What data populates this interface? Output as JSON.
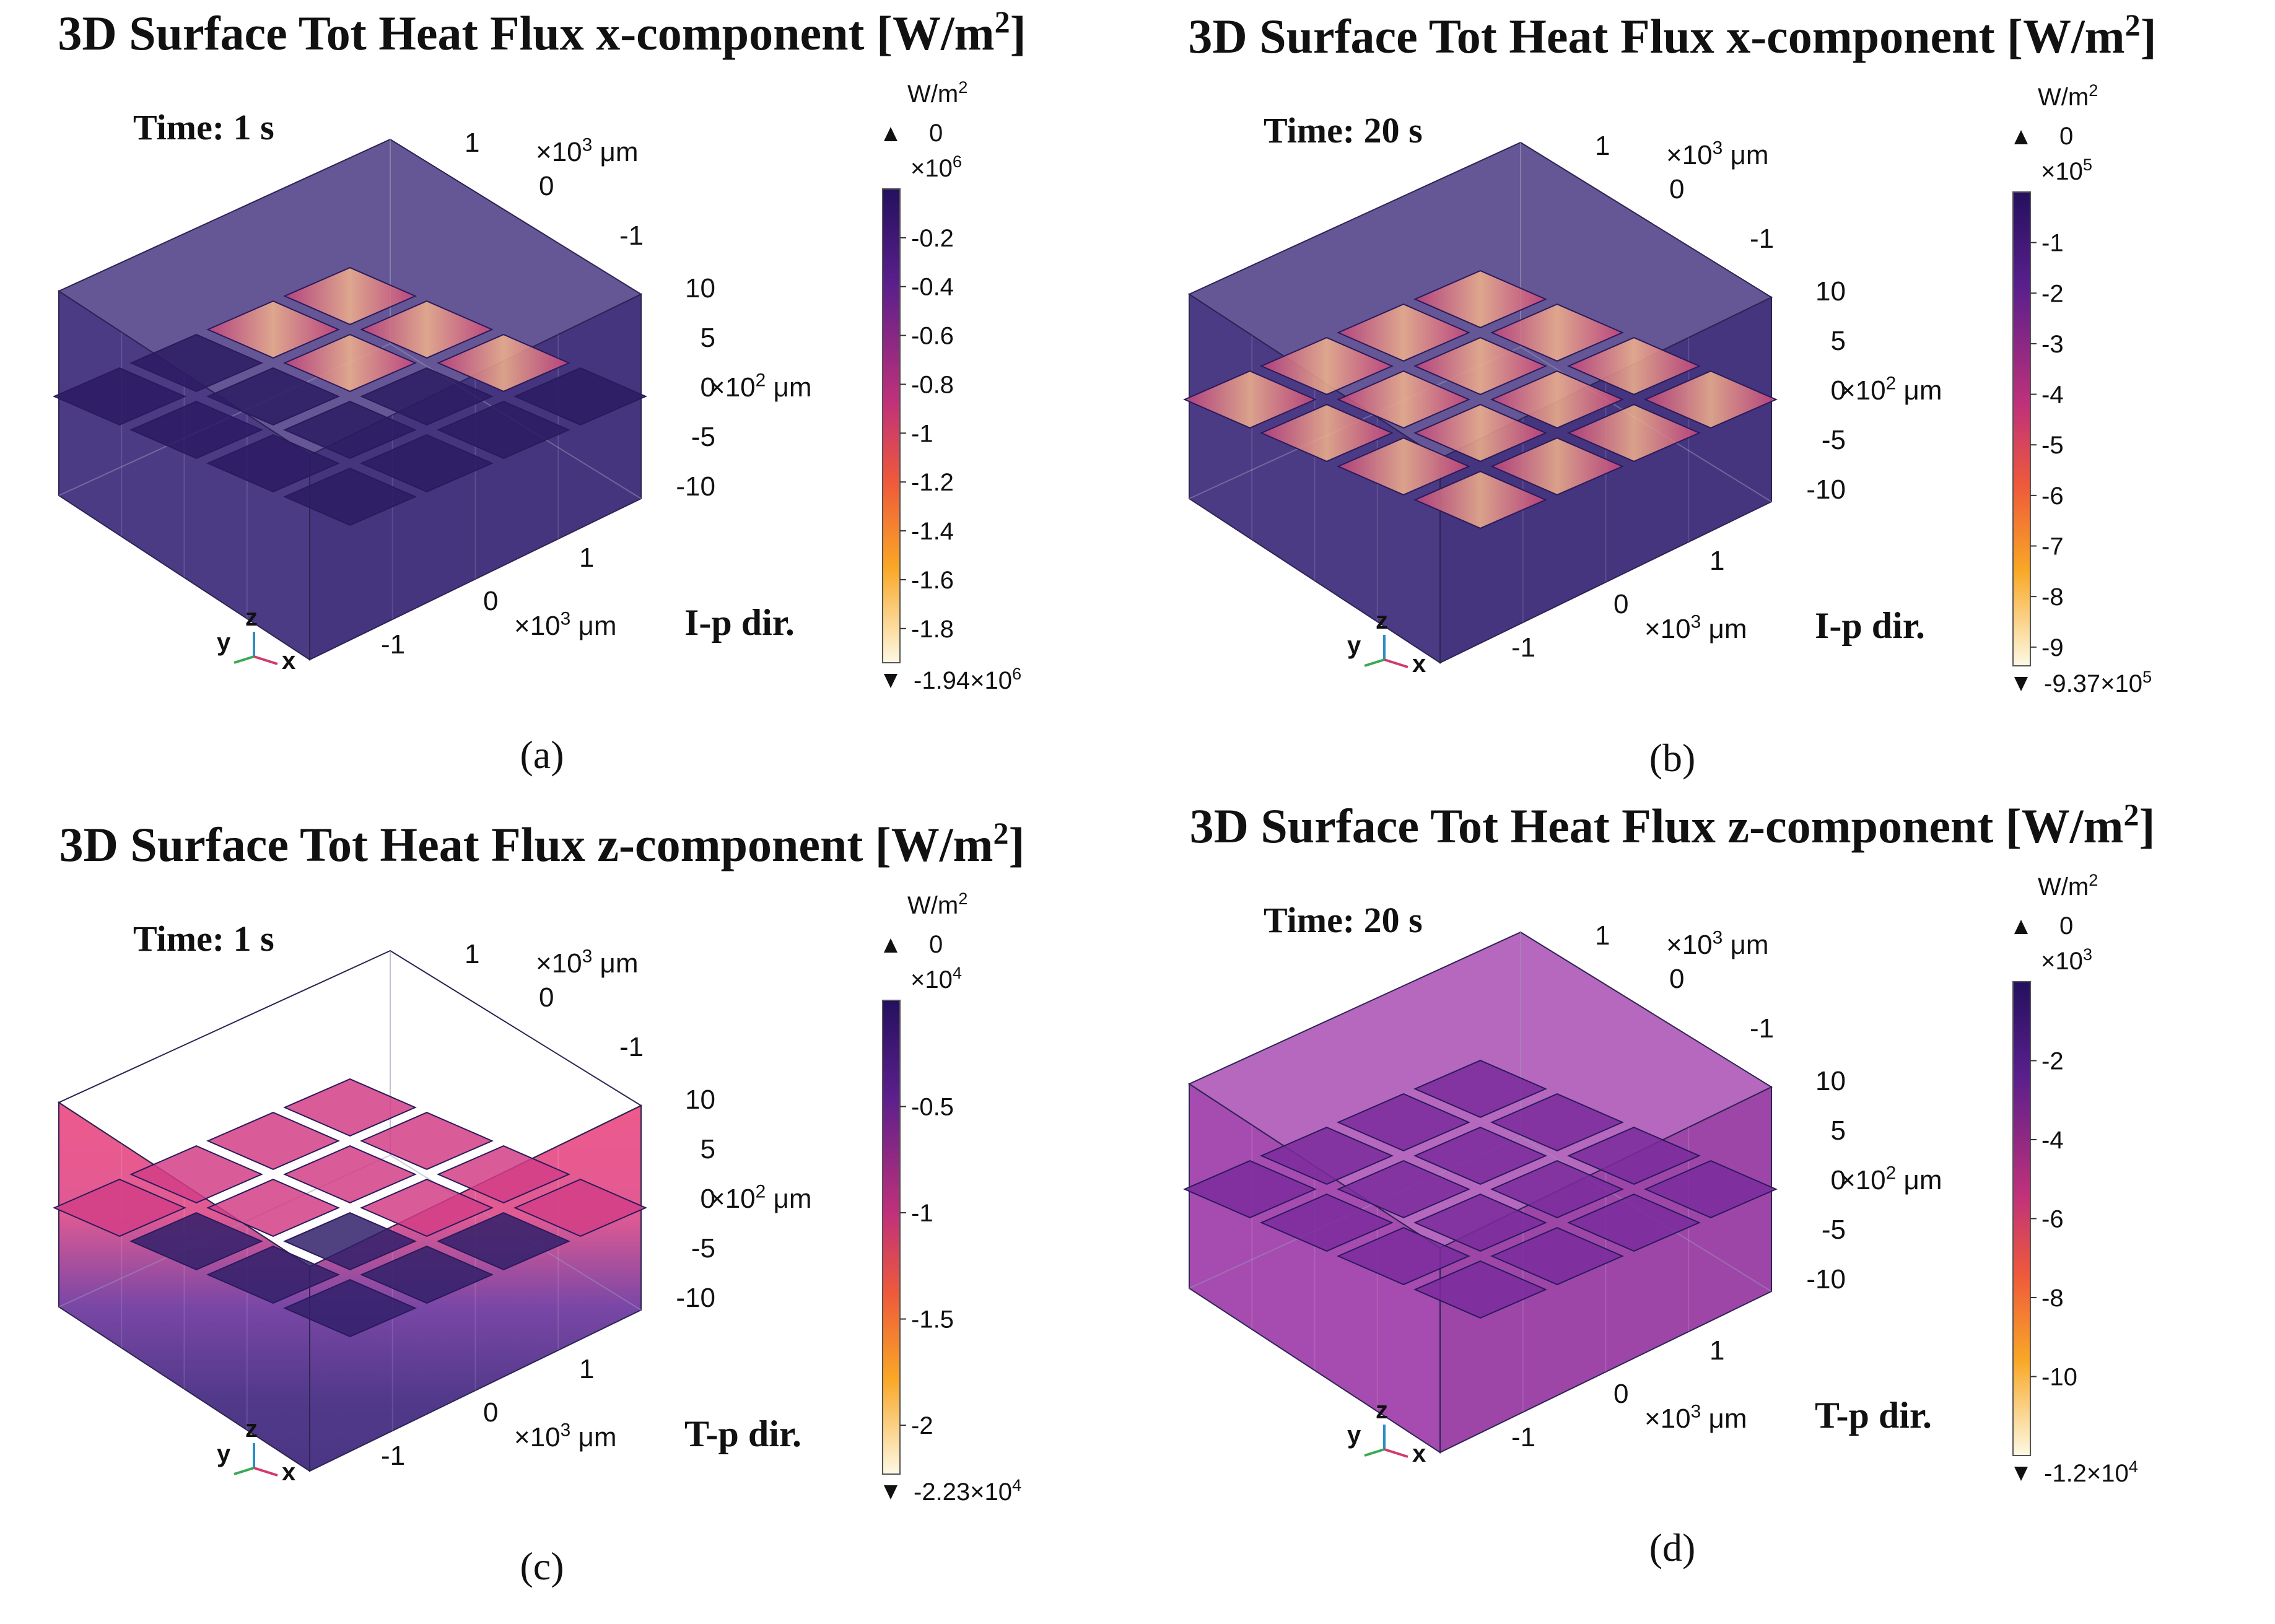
{
  "panels": [
    {
      "title_main": "3D Surface Tot Heat Flux x-component [W/m",
      "title_sup": "2",
      "title_end": "]",
      "time": "Time: 1 s",
      "direction": "I-p dir.",
      "caption": "(a)",
      "colorbar": {
        "unit": "W/m",
        "unit_sup": "2",
        "max_label": "0",
        "multiplier": "×10",
        "multiplier_exp": "6",
        "ticks": [
          "-0.2",
          "-0.4",
          "-0.6",
          "-0.8",
          "-1",
          "-1.2",
          "-1.4",
          "-1.6",
          "-1.8"
        ],
        "tick_values": [
          -0.2,
          -0.4,
          -0.6,
          -0.8,
          -1,
          -1.2,
          -1.4,
          -1.6,
          -1.8
        ],
        "range": [
          -1.94,
          0
        ],
        "min_label": "-1.94×10",
        "min_exp": "6"
      }
    },
    {
      "title_main": "3D Surface Tot Heat Flux x-component [W/m",
      "title_sup": "2",
      "title_end": "]",
      "time": "Time: 20 s",
      "direction": "I-p dir.",
      "caption": "(b)",
      "colorbar": {
        "unit": "W/m",
        "unit_sup": "2",
        "max_label": "0",
        "multiplier": "×10",
        "multiplier_exp": "5",
        "ticks": [
          "-1",
          "-2",
          "-3",
          "-4",
          "-5",
          "-6",
          "-7",
          "-8",
          "-9"
        ],
        "tick_values": [
          -1,
          -2,
          -3,
          -4,
          -5,
          -6,
          -7,
          -8,
          -9
        ],
        "range": [
          -9.37,
          0
        ],
        "min_label": "-9.37×10",
        "min_exp": "5"
      }
    },
    {
      "title_main": "3D Surface Tot Heat Flux z-component [W/m",
      "title_sup": "2",
      "title_end": "]",
      "time": "Time: 1 s",
      "direction": "T-p dir.",
      "caption": "(c)",
      "colorbar": {
        "unit": "W/m",
        "unit_sup": "2",
        "max_label": "0",
        "multiplier": "×10",
        "multiplier_exp": "4",
        "ticks": [
          "-0.5",
          "-1",
          "-1.5",
          "-2"
        ],
        "tick_values": [
          -0.5,
          -1,
          -1.5,
          -2
        ],
        "range": [
          -2.23,
          0
        ],
        "min_label": "-2.23×10",
        "min_exp": "4"
      }
    },
    {
      "title_main": "3D Surface Tot Heat Flux z-component [W/m",
      "title_sup": "2",
      "title_end": "]",
      "time": "Time: 20 s",
      "direction": "T-p dir.",
      "caption": "(d)",
      "colorbar": {
        "unit": "W/m",
        "unit_sup": "2",
        "max_label": "0",
        "multiplier": "×10",
        "multiplier_exp": "3",
        "ticks": [
          "-2",
          "-4",
          "-6",
          "-8",
          "-10"
        ],
        "tick_values": [
          -2,
          -4,
          -6,
          -8,
          -10
        ],
        "range": [
          -12,
          0
        ],
        "min_label": "-1.2×10",
        "min_exp": "4"
      }
    }
  ],
  "axes": {
    "back_x_ticks": [
      "1",
      "0",
      "-1"
    ],
    "back_x_unit": "×10",
    "back_x_unit_exp": "3",
    "back_x_unit_tail": " μm",
    "z_ticks": [
      "10",
      "5",
      "0",
      "-5",
      "-10"
    ],
    "z_unit": "×10",
    "z_unit_exp": "2",
    "z_unit_tail": " μm",
    "front_ticks": [
      "1",
      "0",
      "-1"
    ],
    "front_unit": "×10",
    "front_unit_exp": "3",
    "front_unit_tail": " μm",
    "triad": [
      "y",
      "z",
      "x"
    ]
  },
  "chart_data": [
    {
      "type": "heatmap",
      "title": "3D Surface Tot Heat Flux x-component [W/m²]",
      "annotation": "Time: 1 s",
      "colorbar_range": [
        -1940000,
        0
      ],
      "colorbar_ticks": [
        -200000,
        -400000,
        -600000,
        -800000,
        -1000000,
        -1200000,
        -1400000,
        -1600000,
        -1800000
      ],
      "axis_label": "I-p dir."
    },
    {
      "type": "heatmap",
      "title": "3D Surface Tot Heat Flux x-component [W/m²]",
      "annotation": "Time: 20 s",
      "colorbar_range": [
        -937000,
        0
      ],
      "colorbar_ticks": [
        -100000,
        -200000,
        -300000,
        -400000,
        -500000,
        -600000,
        -700000,
        -800000,
        -900000
      ],
      "axis_label": "I-p dir."
    },
    {
      "type": "heatmap",
      "title": "3D Surface Tot Heat Flux z-component [W/m²]",
      "annotation": "Time: 1 s",
      "colorbar_range": [
        -22300,
        0
      ],
      "colorbar_ticks": [
        -5000,
        -10000,
        -15000,
        -20000
      ],
      "axis_label": "T-p dir."
    },
    {
      "type": "heatmap",
      "title": "3D Surface Tot Heat Flux z-component [W/m²]",
      "annotation": "Time: 20 s",
      "colorbar_range": [
        -12000,
        0
      ],
      "colorbar_ticks": [
        -2000,
        -4000,
        -6000,
        -8000,
        -10000
      ],
      "axis_label": "T-p dir."
    }
  ],
  "colors": {
    "plasma_dark": "#3a1c73",
    "plasma_mid": "#d6365a",
    "plasma_orange": "#f7a11d",
    "plasma_light": "#fdf7d7",
    "box_dark": "#4a3a82",
    "box_magenta": "#a44aae"
  }
}
